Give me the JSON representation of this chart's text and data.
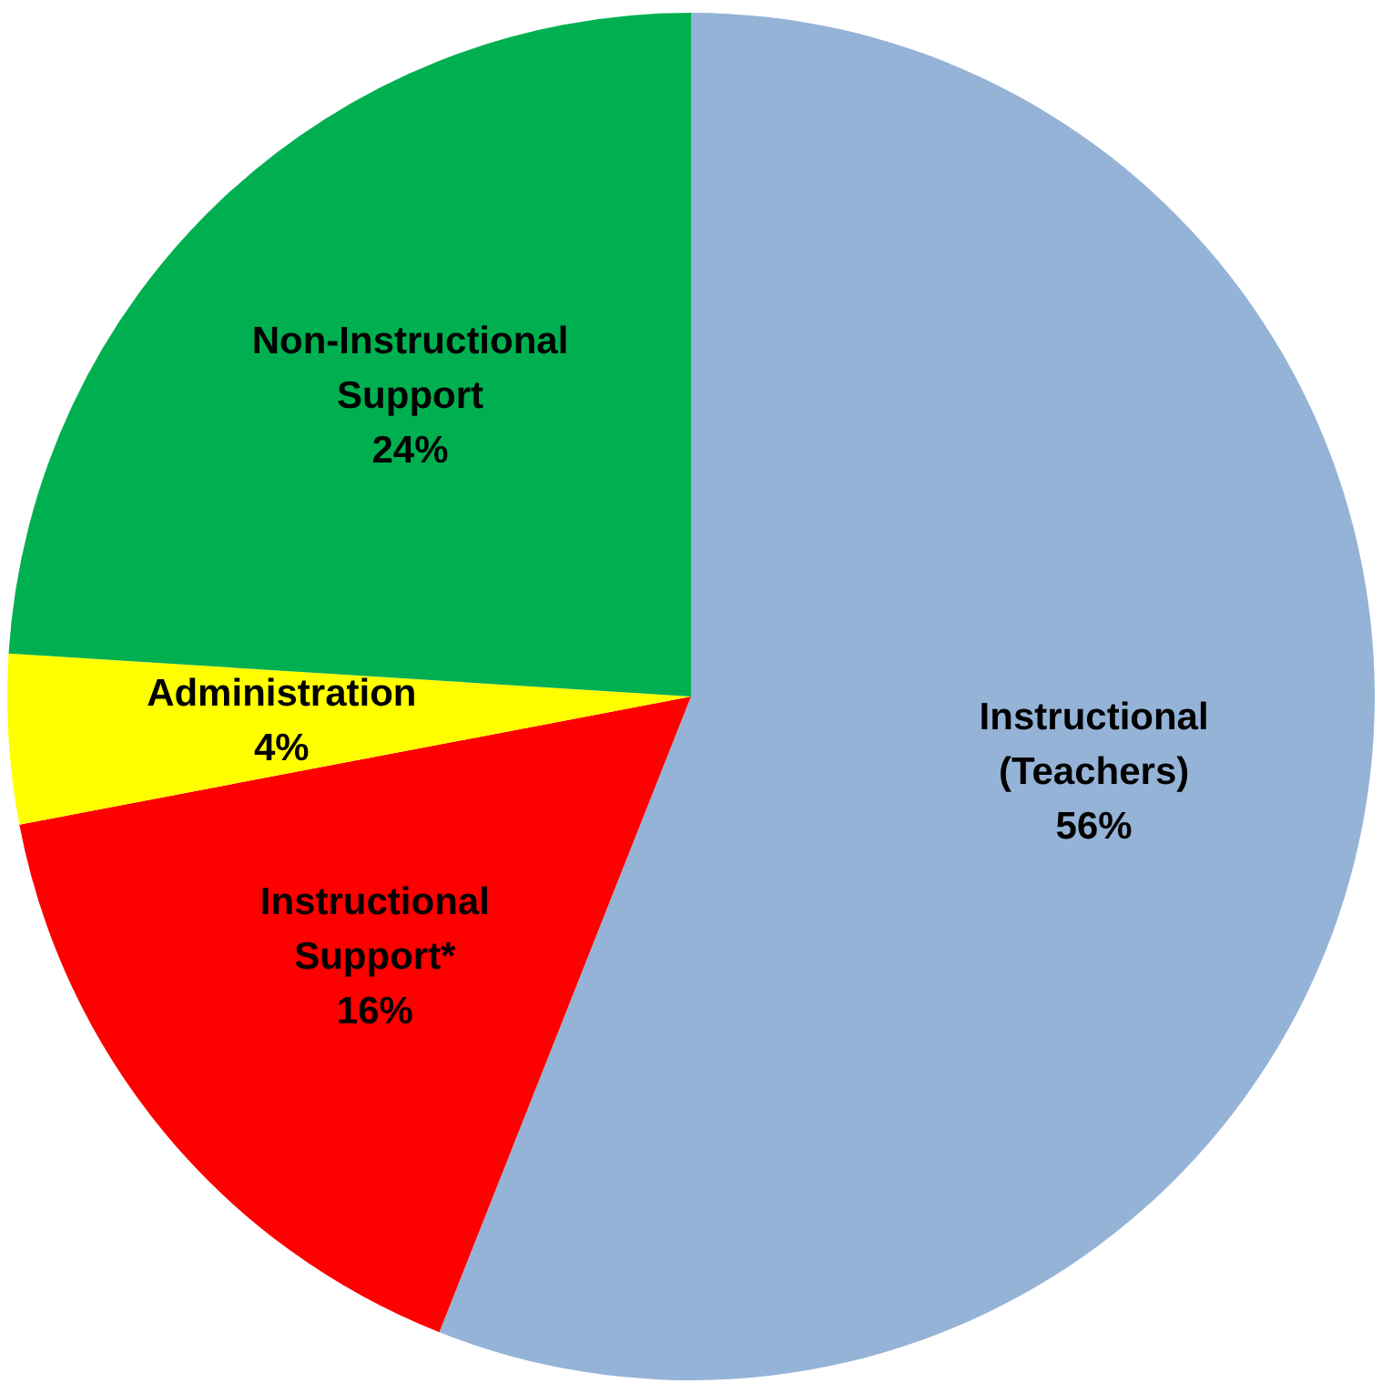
{
  "chart_data": {
    "type": "pie",
    "categories": [
      "Instructional (Teachers)",
      "Instructional Support*",
      "Administration",
      "Non-Instructional Support"
    ],
    "values": [
      56,
      16,
      4,
      24
    ],
    "colors": [
      "#95b3d7",
      "#ff0000",
      "#ffff00",
      "#00b050"
    ],
    "value_labels": [
      "56%",
      "16%",
      "4%",
      "24%"
    ],
    "legend": false
  }
}
